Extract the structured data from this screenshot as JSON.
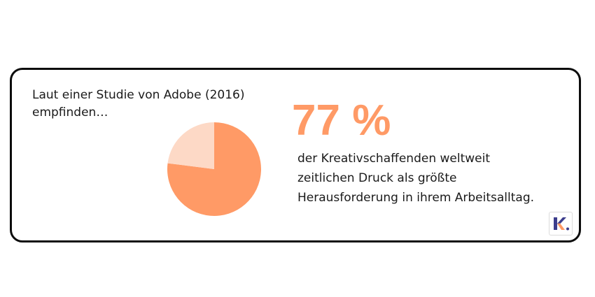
{
  "intro": {
    "line1": "Laut einer Studie von Adobe (2016)",
    "line2": "empfinden…"
  },
  "highlight": {
    "value_text": "77 %"
  },
  "description": {
    "line1": "der Kreativschaffenden weltweit",
    "line2": "zeitlichen Druck als größte",
    "line3": "Herausforderung in ihrem Arbeitsalltag."
  },
  "logo": {
    "icon": "k-logo-icon",
    "text": "K."
  },
  "colors": {
    "accent": "#ff9a66",
    "accent_light": "#fdd9c6",
    "border": "#0c0c0c",
    "logo_blue": "#3c3d8c"
  },
  "chart_data": {
    "type": "pie",
    "values": [
      77,
      23
    ],
    "colors": [
      "#ff9a66",
      "#fdd9c6"
    ],
    "title": "",
    "legend": "none"
  }
}
